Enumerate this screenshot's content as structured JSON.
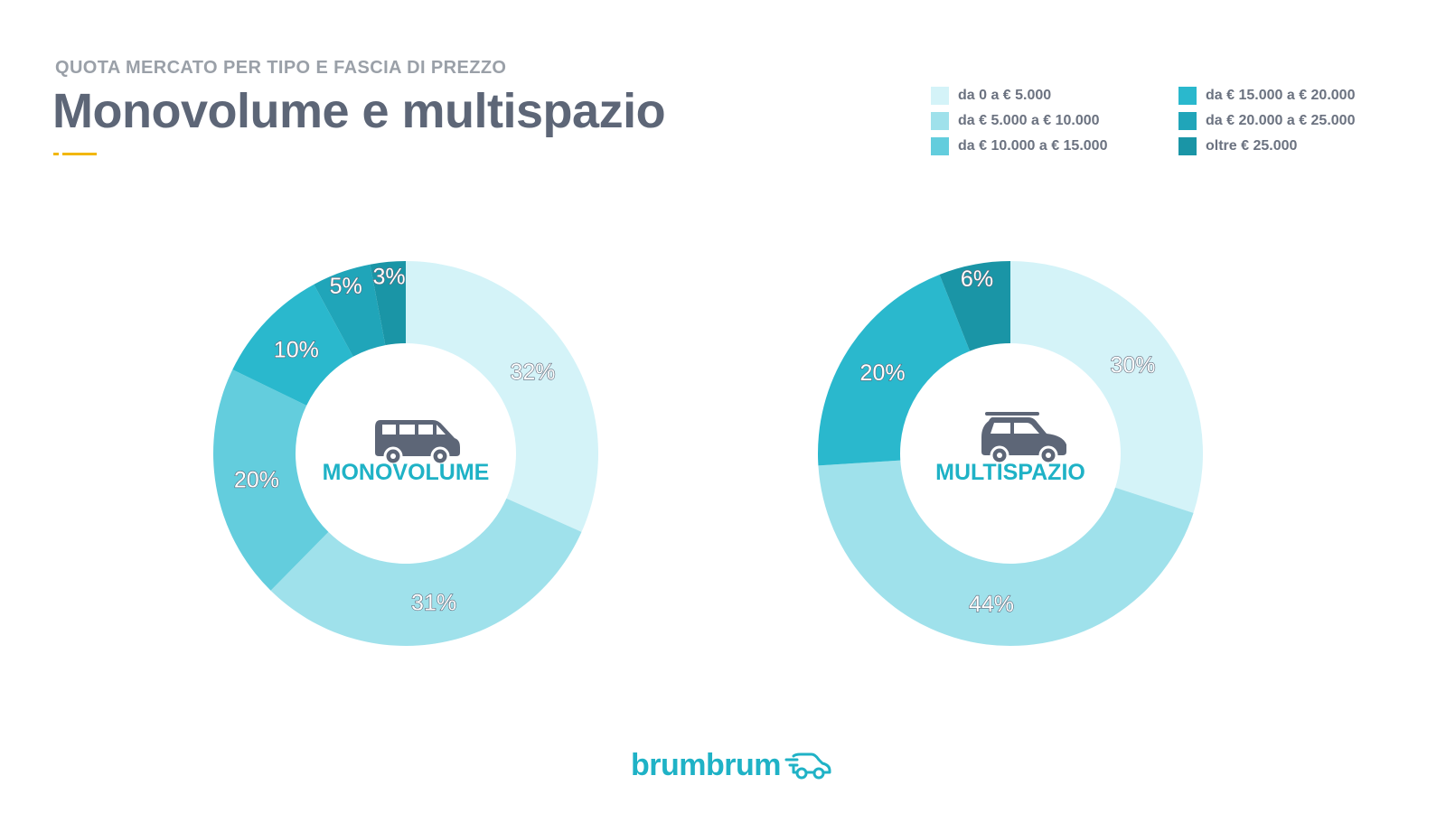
{
  "header": {
    "subtitle": "QUOTA MERCATO PER TIPO E FASCIA DI PREZZO",
    "title": "Monovolume e multispazio",
    "accent_color": "#f2b705"
  },
  "legend": [
    {
      "label": "da 0 a € 5.000",
      "color": "#d4f3f8"
    },
    {
      "label": "da € 5.000 a € 10.000",
      "color": "#9fe1eb"
    },
    {
      "label": "da € 10.000 a € 15.000",
      "color": "#63cddd"
    },
    {
      "label": "da € 15.000 a € 20.000",
      "color": "#2ab8cd"
    },
    {
      "label": "da € 20.000 a € 25.000",
      "color": "#20a5b9"
    },
    {
      "label": "oltre € 25.000",
      "color": "#1a95a6"
    }
  ],
  "chart_data": [
    {
      "type": "pie",
      "donut": true,
      "center_label": "MONOVOLUME",
      "center_icon": "minivan-icon",
      "categories": [
        "da 0 a € 5.000",
        "da € 5.000 a € 10.000",
        "da € 10.000 a € 15.000",
        "da € 15.000 a € 20.000",
        "da € 20.000 a € 25.000",
        "oltre € 25.000"
      ],
      "values": [
        32,
        31,
        20,
        10,
        5,
        3
      ],
      "labels": [
        "32%",
        "31%",
        "20%",
        "10%",
        "5%",
        "3%"
      ]
    },
    {
      "type": "pie",
      "donut": true,
      "center_label": "MULTISPAZIO",
      "center_icon": "multispace-car-icon",
      "categories": [
        "da 0 a € 5.000",
        "da € 5.000 a € 10.000",
        "da € 10.000 a € 15.000",
        "da € 15.000 a € 20.000",
        "da € 20.000 a € 25.000",
        "oltre € 25.000"
      ],
      "values": [
        30,
        44,
        0,
        20,
        0,
        6
      ],
      "labels": [
        "30%",
        "44%",
        "",
        "20%",
        "",
        "6%"
      ]
    }
  ],
  "footer": {
    "logo_text": "brumbrum",
    "logo_icon": "car-logo-icon",
    "brand_color": "#1fb2c6"
  },
  "colors": {
    "text": "#5d6677",
    "label_fill": "#ffffff",
    "label_stroke": "#5d6677",
    "center_label": "#1fb2c6",
    "icon": "#5d6677"
  }
}
